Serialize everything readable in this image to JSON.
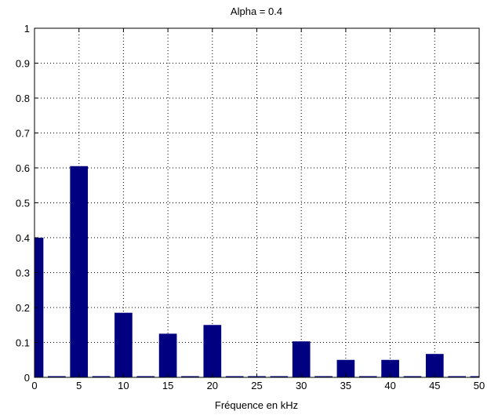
{
  "chart_data": {
    "type": "bar",
    "title": "Alpha = 0.4",
    "xlabel": "Fréquence en kHz",
    "ylabel": "",
    "xlim": [
      0,
      50
    ],
    "ylim": [
      0,
      1
    ],
    "grid": true,
    "bar_color": "#000080",
    "bar_width": 2,
    "xticks": [
      "0",
      "5",
      "10",
      "15",
      "20",
      "25",
      "30",
      "35",
      "40",
      "45",
      "50"
    ],
    "yticks": [
      "0",
      "0.1",
      "0.2",
      "0.3",
      "0.4",
      "0.5",
      "0.6",
      "0.7",
      "0.8",
      "0.9",
      "1"
    ],
    "x": [
      0,
      2.5,
      5,
      7.5,
      10,
      12.5,
      15,
      17.5,
      20,
      22.5,
      25,
      27.5,
      30,
      32.5,
      35,
      37.5,
      40,
      42.5,
      45,
      47.5,
      50
    ],
    "values": [
      0.4,
      0,
      0.605,
      0,
      0.185,
      0,
      0.125,
      0,
      0.15,
      0,
      0,
      0,
      0.103,
      0,
      0.05,
      0,
      0.05,
      0,
      0.067,
      0,
      0
    ]
  }
}
